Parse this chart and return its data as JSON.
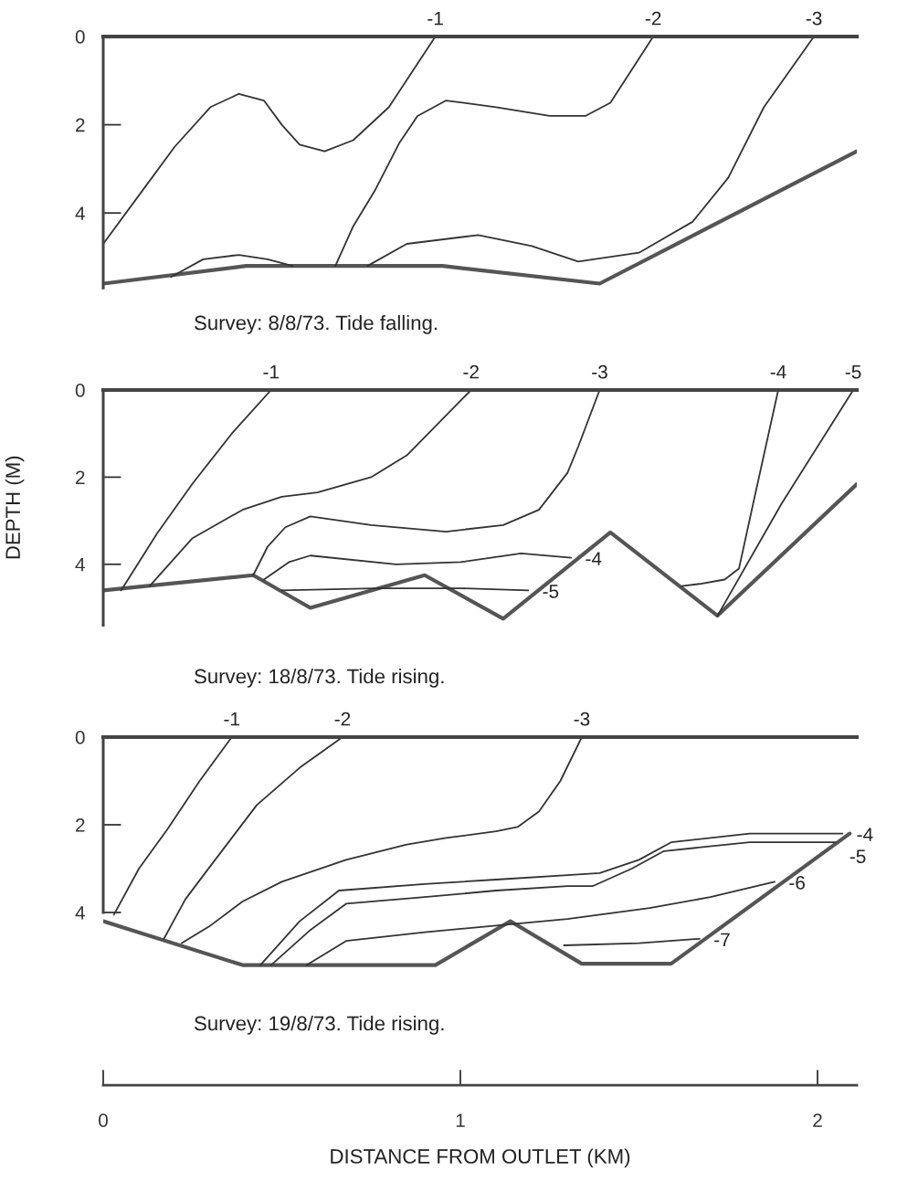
{
  "chart_data": [
    {
      "type": "line",
      "title": "Survey: 8/8/73. Tide falling.",
      "xlim": [
        0,
        2.11
      ],
      "ylim": [
        5.7,
        0
      ],
      "yticks": [
        0,
        2,
        4
      ],
      "tick_labels": "y",
      "grid": false,
      "series": [
        {
          "color": "#555555",
          "x": [
            0,
            0.4,
            0.95,
            1.39,
            2.11
          ],
          "values": [
            5.6,
            5.2,
            5.2,
            5.6,
            2.6
          ]
        },
        {
          "name": "-1",
          "color": "#333333",
          "x": [
            0,
            0.1,
            0.2,
            0.3,
            0.38,
            0.45,
            0.5,
            0.55,
            0.62,
            0.7,
            0.8,
            0.93
          ],
          "values": [
            4.7,
            3.6,
            2.5,
            1.6,
            1.3,
            1.45,
            2.0,
            2.45,
            2.6,
            2.35,
            1.6,
            0
          ]
        },
        {
          "name": "-2",
          "color": "#333333",
          "x": [
            0.65,
            0.7,
            0.76,
            0.83,
            0.88,
            0.96,
            1.1,
            1.25,
            1.35,
            1.42,
            1.54
          ],
          "values": [
            5.2,
            4.3,
            3.5,
            2.4,
            1.8,
            1.45,
            1.6,
            1.8,
            1.8,
            1.5,
            0
          ]
        },
        {
          "name": "-3",
          "color": "#333333",
          "x": [
            0.19,
            0.28,
            0.38,
            0.46,
            0.53,
            0.6,
            0.74,
            0.85,
            1.05,
            1.2,
            1.33,
            1.5,
            1.65,
            1.75,
            1.85,
            1.99
          ],
          "values": [
            5.45,
            5.05,
            4.95,
            5.05,
            5.2,
            null,
            5.2,
            4.7,
            4.5,
            4.75,
            5.1,
            4.9,
            4.2,
            3.2,
            1.6,
            0
          ]
        }
      ]
    },
    {
      "type": "line",
      "title": "Survey: 18/8/73. Tide rising.",
      "ylabel": "DEPTH (M)",
      "xlim": [
        0,
        2.11
      ],
      "ylim": [
        5.4,
        0
      ],
      "yticks": [
        0,
        2,
        4
      ],
      "tick_labels": "y",
      "grid": false,
      "series": [
        {
          "color": "#555555",
          "x": [
            0,
            0.42,
            0.58,
            0.9,
            1.12,
            1.42,
            1.72,
            2.11
          ],
          "values": [
            4.6,
            4.25,
            5.0,
            4.25,
            5.25,
            3.27,
            5.18,
            2.16
          ]
        },
        {
          "name": "-1",
          "color": "#333333",
          "x": [
            0.05,
            0.15,
            0.25,
            0.36,
            0.47
          ],
          "values": [
            4.6,
            3.3,
            2.15,
            1.0,
            0
          ]
        },
        {
          "name": "-2",
          "color": "#333333",
          "x": [
            0.13,
            0.25,
            0.39,
            0.5,
            0.6,
            0.75,
            0.85,
            1.03
          ],
          "values": [
            4.5,
            3.4,
            2.75,
            2.45,
            2.35,
            2.0,
            1.5,
            0
          ]
        },
        {
          "name": "-3",
          "color": "#333333",
          "x": [
            0.42,
            0.46,
            0.51,
            0.58,
            0.75,
            0.96,
            1.12,
            1.22,
            1.3,
            1.33,
            1.39
          ],
          "values": [
            4.25,
            3.6,
            3.15,
            2.9,
            3.1,
            3.25,
            3.1,
            2.75,
            1.9,
            1.3,
            0
          ]
        },
        {
          "name": "-4",
          "color": "#333333",
          "x": [
            0.45,
            0.52,
            0.58,
            0.82,
            1.0,
            1.17,
            1.31
          ],
          "values": [
            4.35,
            3.95,
            3.8,
            4.0,
            3.95,
            3.75,
            3.85
          ]
        },
        {
          "name": "-5",
          "color": "#333333",
          "x": [
            0.5,
            0.76,
            1.0,
            1.19
          ],
          "values": [
            4.6,
            4.55,
            4.55,
            4.6
          ]
        },
        {
          "name": "-4",
          "color": "#333333",
          "x": [
            1.62,
            1.67,
            1.74,
            1.78,
            1.82,
            1.89
          ],
          "values": [
            4.5,
            4.45,
            4.35,
            4.1,
            2.6,
            0
          ]
        },
        {
          "name": "-5",
          "color": "#333333",
          "x": [
            1.72,
            1.9,
            2.1
          ],
          "values": [
            5.18,
            2.6,
            0
          ]
        }
      ]
    },
    {
      "type": "line",
      "title": "Survey: 19/8/73. Tide rising.",
      "xlabel": "DISTANCE FROM OUTLET (KM)",
      "xlim": [
        0,
        2.11
      ],
      "xticks": [
        0,
        1,
        2
      ],
      "ylim": [
        7.94,
        0
      ],
      "yticks": [
        0,
        2,
        4
      ],
      "grid": false,
      "series": [
        {
          "color": "#555555",
          "x": [
            0,
            0.39,
            0.93,
            1.14,
            1.34,
            1.59,
            2.09
          ],
          "values": [
            4.2,
            5.2,
            5.2,
            4.2,
            5.17,
            5.17,
            2.2
          ]
        },
        {
          "name": "-1",
          "color": "#333333",
          "x": [
            0.03,
            0.1,
            0.18,
            0.27,
            0.36
          ],
          "values": [
            4.05,
            3.0,
            2.1,
            1.0,
            0
          ]
        },
        {
          "name": "-2",
          "color": "#333333",
          "x": [
            0.17,
            0.23,
            0.29,
            0.36,
            0.43,
            0.55,
            0.67
          ],
          "values": [
            4.6,
            3.7,
            3.05,
            2.3,
            1.55,
            0.7,
            0
          ]
        },
        {
          "name": "-3",
          "color": "#333333",
          "x": [
            0.22,
            0.3,
            0.39,
            0.5,
            0.68,
            0.85,
            0.96,
            1.1,
            1.16,
            1.22,
            1.28,
            1.34
          ],
          "values": [
            4.7,
            4.3,
            3.75,
            3.3,
            2.8,
            2.45,
            2.3,
            2.15,
            2.05,
            1.7,
            1.0,
            0
          ]
        },
        {
          "name": "-4",
          "color": "#333333",
          "x": [
            0.44,
            0.55,
            0.66,
            0.9,
            1.1,
            1.3,
            1.39,
            1.5,
            1.59,
            1.81,
            2.07
          ],
          "values": [
            5.2,
            4.2,
            3.5,
            3.35,
            3.25,
            3.15,
            3.1,
            2.8,
            2.4,
            2.2,
            2.2
          ]
        },
        {
          "name": "-5",
          "color": "#333333",
          "x": [
            0.47,
            0.58,
            0.68,
            0.9,
            1.1,
            1.3,
            1.37,
            1.48,
            1.57,
            1.81,
            2.05
          ],
          "values": [
            5.2,
            4.4,
            3.8,
            3.65,
            3.5,
            3.4,
            3.4,
            3.0,
            2.6,
            2.4,
            2.4
          ]
        },
        {
          "name": "-6",
          "color": "#333333",
          "x": [
            0.57,
            0.68,
            0.9,
            1.1,
            1.3,
            1.53,
            1.7,
            1.88
          ],
          "values": [
            5.2,
            4.65,
            4.45,
            4.3,
            4.15,
            3.9,
            3.65,
            3.3
          ]
        },
        {
          "name": "-7",
          "color": "#333333",
          "x": [
            1.29,
            1.5,
            1.67
          ],
          "values": [
            4.75,
            4.7,
            4.6
          ]
        }
      ]
    }
  ]
}
